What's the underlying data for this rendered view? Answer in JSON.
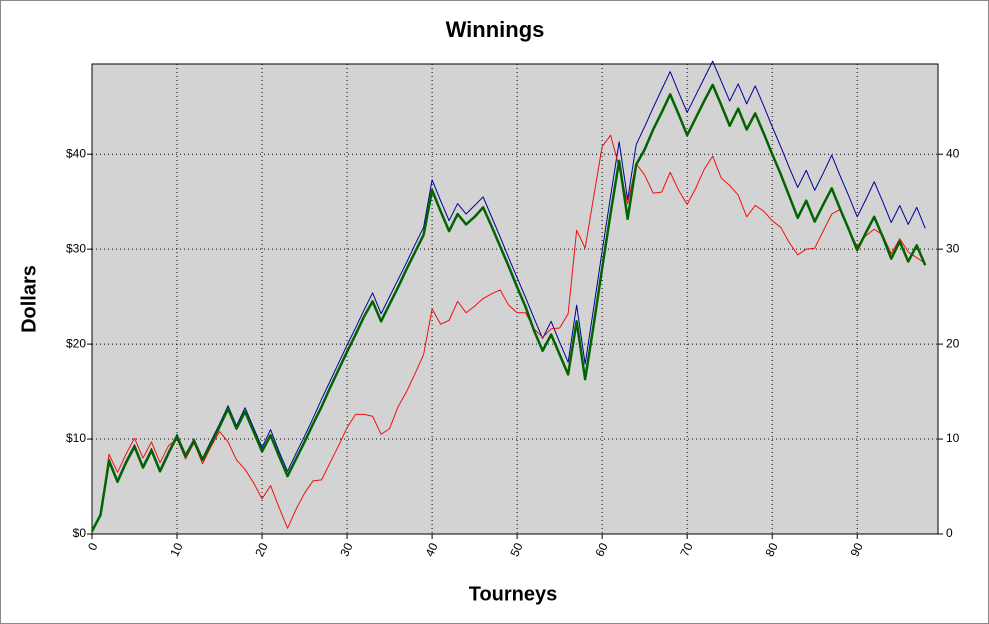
{
  "chart_data": {
    "type": "line",
    "title": "Winnings",
    "xlabel": "Tourneys",
    "ylabel": "Dollars",
    "x": [
      0,
      1,
      2,
      3,
      4,
      5,
      6,
      7,
      8,
      9,
      10,
      11,
      12,
      13,
      14,
      15,
      16,
      17,
      18,
      19,
      20,
      21,
      22,
      23,
      24,
      25,
      26,
      27,
      28,
      29,
      30,
      31,
      32,
      33,
      34,
      35,
      36,
      37,
      38,
      39,
      40,
      41,
      42,
      43,
      44,
      45,
      46,
      47,
      48,
      49,
      50,
      51,
      52,
      53,
      54,
      55,
      56,
      57,
      58,
      59,
      60,
      61,
      62,
      63,
      64,
      65,
      66,
      67,
      68,
      69,
      70,
      71,
      72,
      73,
      74,
      75,
      76,
      77,
      78,
      79,
      80,
      81,
      82,
      83,
      84,
      85,
      86,
      87,
      88,
      89,
      90,
      91,
      92,
      93,
      94,
      95,
      96,
      97,
      98
    ],
    "series": [
      {
        "color": "#000099",
        "width": 1,
        "values": [
          0.3,
          2,
          7.9,
          5.7,
          7.7,
          9.4,
          7.2,
          9,
          6.8,
          8.7,
          10.5,
          8.4,
          10,
          8,
          9.8,
          11.6,
          13.5,
          11.4,
          13.3,
          11.2,
          9.1,
          11,
          8.7,
          6.6,
          8.5,
          10.3,
          12.2,
          14.2,
          16.1,
          18,
          19.9,
          21.7,
          23.6,
          25.4,
          23.2,
          25,
          26.8,
          28.6,
          30.5,
          32.3,
          37.3,
          35.1,
          33,
          34.8,
          33.7,
          34.6,
          35.5,
          33.4,
          31.3,
          29.1,
          27,
          24.9,
          22.7,
          20.6,
          22.4,
          20.2,
          18.1,
          24.1,
          17.9,
          23.8,
          29.8,
          35.6,
          41.3,
          35.2,
          41,
          42.9,
          44.9,
          46.8,
          48.7,
          46.5,
          44.4,
          46.2,
          48,
          49.8,
          47.7,
          45.6,
          47.4,
          45.3,
          47.2,
          45.1,
          42.9,
          40.8,
          38.6,
          36.5,
          38.3,
          36.2,
          38,
          39.9,
          37.7,
          35.6,
          33.4,
          35.2,
          37.1,
          35,
          32.8,
          34.6,
          32.6,
          34.4,
          32.2
        ]
      },
      {
        "color": "#ee1111",
        "width": 1,
        "values": [
          0.3,
          2,
          8.4,
          6.5,
          8.4,
          10.1,
          8,
          9.7,
          7.5,
          9.3,
          10,
          7.9,
          9.6,
          7.4,
          9.2,
          10.8,
          9.7,
          7.8,
          6.8,
          5.4,
          3.7,
          5.1,
          2.8,
          0.6,
          2.6,
          4.3,
          5.6,
          5.7,
          7.5,
          9.3,
          11.2,
          12.6,
          12.6,
          12.4,
          10.5,
          11.1,
          13.4,
          15,
          16.9,
          18.9,
          23.7,
          22.1,
          22.5,
          24.5,
          23.3,
          24,
          24.8,
          25.3,
          25.7,
          24.1,
          23.3,
          23.3,
          21.6,
          20.7,
          21.6,
          21.7,
          23.2,
          32,
          30.1,
          35.5,
          40.8,
          42,
          38.6,
          34.8,
          39,
          37.8,
          35.9,
          36,
          38.1,
          36.2,
          34.7,
          36.4,
          38.4,
          39.8,
          37.5,
          36.7,
          35.7,
          33.4,
          34.6,
          34,
          33,
          32.3,
          30.7,
          29.4,
          30,
          30.1,
          31.9,
          33.7,
          34.2,
          32,
          30.3,
          31.4,
          32.1,
          31.5,
          29.5,
          31.1,
          29.7,
          29.1,
          28.5
        ]
      },
      {
        "color": "#006400",
        "width": 2.5,
        "values": [
          0.3,
          2,
          7.7,
          5.5,
          7.5,
          9.2,
          7,
          8.8,
          6.6,
          8.5,
          10.3,
          8.2,
          9.8,
          7.8,
          9.5,
          11.3,
          13.2,
          11.1,
          12.9,
          10.8,
          8.7,
          10.4,
          8.2,
          6.1,
          7.9,
          9.7,
          11.6,
          13.4,
          15.4,
          17.3,
          19.2,
          21,
          22.9,
          24.5,
          22.4,
          24.2,
          26,
          27.9,
          29.7,
          31.5,
          36.2,
          34,
          31.9,
          33.7,
          32.6,
          33.4,
          34.4,
          32.4,
          30.3,
          28.2,
          26,
          23.9,
          21.4,
          19.3,
          21,
          18.9,
          16.8,
          22.4,
          16.3,
          22,
          28,
          33.8,
          39.3,
          33.2,
          38.9,
          40.5,
          42.6,
          44.4,
          46.3,
          44.2,
          42,
          43.8,
          45.6,
          47.3,
          45.2,
          43,
          44.8,
          42.6,
          44.3,
          42.2,
          40,
          37.9,
          35.6,
          33.3,
          35.1,
          32.9,
          34.7,
          36.4,
          34.2,
          32.1,
          29.9,
          31.7,
          33.4,
          31.3,
          29,
          30.8,
          28.7,
          30.4,
          28.3
        ]
      }
    ],
    "xlim": [
      0,
      99.5
    ],
    "xticks": [
      0,
      10,
      20,
      30,
      40,
      50,
      60,
      70,
      80,
      90
    ],
    "ylim": [
      0,
      49.5
    ],
    "yticks": [
      {
        "value": 0,
        "label": "$0"
      },
      {
        "value": 10,
        "label": "$10"
      },
      {
        "value": 20,
        "label": "$20"
      },
      {
        "value": 30,
        "label": "$30"
      },
      {
        "value": 40,
        "label": "$40"
      }
    ],
    "y2lim": [
      0,
      49.5
    ],
    "y2ticks": [
      0,
      10,
      20,
      30,
      40
    ],
    "grid": true
  }
}
